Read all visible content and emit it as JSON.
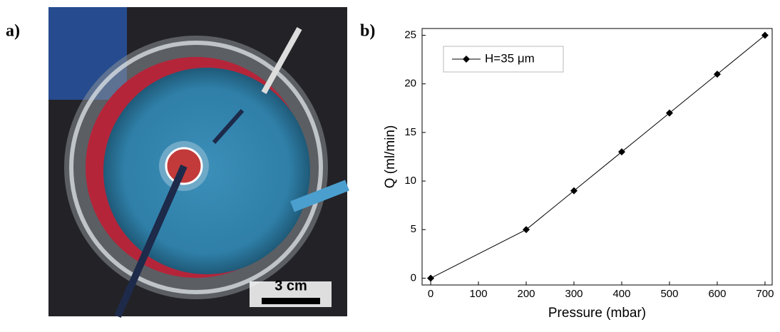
{
  "panel_a": {
    "label": "a)",
    "scale_bar": "3 cm"
  },
  "chart_data": {
    "type": "line",
    "panel_label": "b)",
    "x_label": "Pressure (mbar)",
    "y_label": "Q (ml/min)",
    "x": [
      0,
      200,
      300,
      400,
      500,
      600,
      700
    ],
    "series": [
      {
        "name": "H=35 μm",
        "color": "#000000",
        "values": [
          0,
          5,
          9,
          13,
          17,
          21,
          25
        ]
      }
    ],
    "xlim": [
      -18,
      715
    ],
    "xticks": [
      0,
      100,
      200,
      300,
      400,
      500,
      600,
      700
    ],
    "ylim": [
      -0.7,
      25.7
    ],
    "yticks": [
      0,
      5,
      10,
      15,
      20,
      25
    ],
    "legend": "upper-left"
  }
}
